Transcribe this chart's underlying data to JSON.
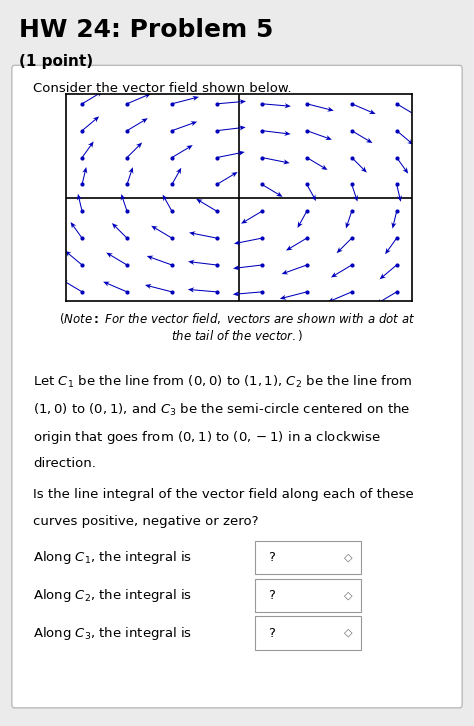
{
  "title": "HW 24: Problem 5",
  "subtitle": "(1 point)",
  "title_fontsize": 18,
  "subtitle_fontsize": 11,
  "bg_color": "#ebebeb",
  "white_bg": "#ffffff",
  "arrow_color": "#0000bb",
  "xlim": [
    -1.5,
    1.5
  ],
  "ylim": [
    -1.5,
    1.5
  ],
  "grid_nx": 8,
  "grid_ny": 8,
  "answer_placeholder": "?",
  "fig_width": 4.74,
  "fig_height": 7.26
}
